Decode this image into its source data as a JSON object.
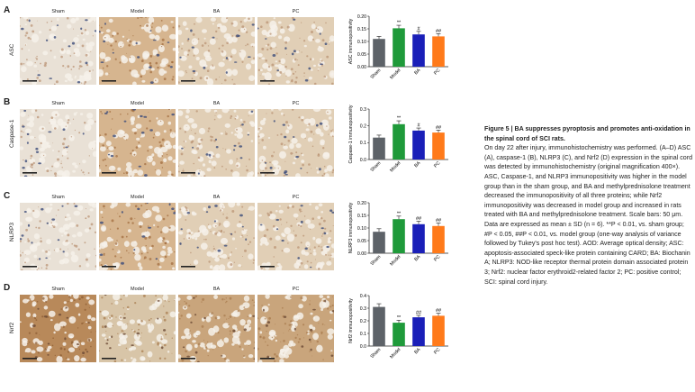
{
  "figure": {
    "columns": [
      "Sham",
      "Model",
      "BA",
      "PC"
    ],
    "rows": [
      {
        "letter": "A",
        "label": "ASC"
      },
      {
        "letter": "B",
        "label": "Caspase-1"
      },
      {
        "letter": "C",
        "label": "NLRP3"
      },
      {
        "letter": "D",
        "label": "Nrf2"
      }
    ],
    "scale_bar_label": "50 μm"
  },
  "colors": {
    "sham": "#5d6268",
    "model": "#1f9a3a",
    "ba": "#1a1fb8",
    "pc": "#ff7a1a"
  },
  "chart_data": [
    {
      "type": "bar",
      "panel": "A",
      "categories": [
        "Sham",
        "Model",
        "BA",
        "PC"
      ],
      "values": [
        0.11,
        0.152,
        0.128,
        0.12
      ],
      "errors": [
        0.01,
        0.012,
        0.012,
        0.011
      ],
      "annotations": [
        "",
        "**",
        "#",
        "##"
      ],
      "ylabel": "ASC immunopositivity",
      "ylim": [
        0,
        0.2
      ],
      "yticks": [
        "0.00",
        "0.05",
        "0.10",
        "0.15",
        "0.20"
      ]
    },
    {
      "type": "bar",
      "panel": "B",
      "categories": [
        "Sham",
        "Model",
        "BA",
        "PC"
      ],
      "values": [
        0.13,
        0.21,
        0.172,
        0.16
      ],
      "errors": [
        0.015,
        0.02,
        0.015,
        0.015
      ],
      "annotations": [
        "",
        "**",
        "#",
        "##"
      ],
      "ylabel": "Caspase-1 immunopositivity",
      "ylim": [
        0,
        0.3
      ],
      "yticks": [
        "0.0",
        "0.1",
        "0.2",
        "0.3"
      ]
    },
    {
      "type": "bar",
      "panel": "C",
      "categories": [
        "Sham",
        "Model",
        "BA",
        "PC"
      ],
      "values": [
        0.085,
        0.135,
        0.115,
        0.108
      ],
      "errors": [
        0.012,
        0.012,
        0.012,
        0.012
      ],
      "annotations": [
        "",
        "**",
        "##",
        "##"
      ],
      "ylabel": "NLRP3 immunopositivity",
      "ylim": [
        0,
        0.2
      ],
      "yticks": [
        "0.00",
        "0.05",
        "0.10",
        "0.15",
        "0.20"
      ]
    },
    {
      "type": "bar",
      "panel": "D",
      "categories": [
        "Sham",
        "Model",
        "BA",
        "PC"
      ],
      "values": [
        0.31,
        0.185,
        0.228,
        0.24
      ],
      "errors": [
        0.025,
        0.02,
        0.015,
        0.02
      ],
      "annotations": [
        "",
        "**",
        "##",
        "##"
      ],
      "ylabel": "Nrf2 immunopositivity",
      "ylim": [
        0,
        0.4
      ],
      "yticks": [
        "0.0",
        "0.1",
        "0.2",
        "0.3",
        "0.4"
      ]
    }
  ],
  "caption": {
    "title": "Figure 5 | BA suppresses pyroptosis and promotes anti-oxidation in the spinal cord of SCI rats.",
    "body": "On day 22 after injury, immunohistochemistry was performed. (A–D) ASC (A), caspase-1 (B), NLRP3 (C), and Nrf2 (D) expression in the spinal cord was detected by immunohistochemistry (original magnification 400×). ASC, Caspase-1, and NLRP3 immunopositivity was higher in the model group than in the sham group, and BA and methylprednisolone treatment decreased the immunopositivity of all three proteins; while Nrf2 immunopositivity was decreased in model group and increased in rats treated with BA and methylprednisolone treatment. Scale bars: 50 μm. Data are expressed as mean ± SD (n = 6). **P < 0.01, vs. sham group; #P < 0.05, ##P < 0.01, vs. model group (one-way analysis of variance followed by Tukey's post hoc test). AOD: Average optical density; ASC: apoptosis-associated speck-like protein containing CARD; BA: Biochanin A; NLRP3: NOD-like receptor thermal protein domain associated protein 3; Nrf2: nuclear factor erythroid2-related factor 2; PC: positive control; SCI: spinal cord injury."
  }
}
